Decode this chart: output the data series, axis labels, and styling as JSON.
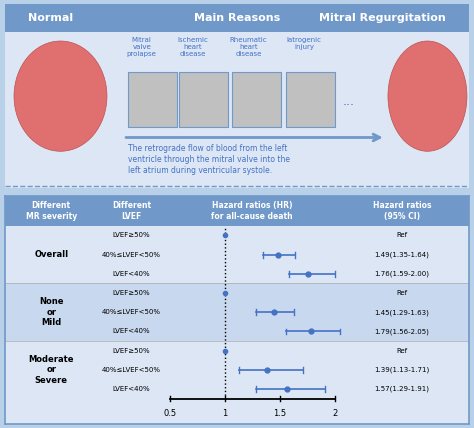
{
  "title_top": "Normal",
  "title_mid": "Main Reasons",
  "title_right": "Mitral Regurgitation",
  "reasons": [
    "Mitral\nvalve\nprolapse",
    "Ischemic\nheart\ndisease",
    "Rheumatic\nheart\ndisease",
    "Iatrogenic\ninjury"
  ],
  "description": "The retrograde flow of blood from the left\nventricle through the mitral valve into the\nleft atrium during ventricular systole.",
  "col_headers": [
    "Different\nMR severity",
    "Different\nLVEF",
    "Hazard ratios (HR)\nfor all-cause death",
    "Hazard ratios\n(95% CI)"
  ],
  "groups": [
    {
      "label": "Overall",
      "rows": [
        {
          "lvef": "LVEF≥50%",
          "hr": 1.0,
          "lo": 1.0,
          "hi": 1.0,
          "text": "Ref",
          "is_ref": true
        },
        {
          "lvef": "40%≤LVEF<50%",
          "hr": 1.49,
          "lo": 1.35,
          "hi": 1.64,
          "text": "1.49(1.35-1.64)",
          "is_ref": false
        },
        {
          "lvef": "LVEF<40%",
          "hr": 1.76,
          "lo": 1.59,
          "hi": 2.0,
          "text": "1.76(1.59-2.00)",
          "is_ref": false
        }
      ]
    },
    {
      "label": "None\nor\nMild",
      "rows": [
        {
          "lvef": "LVEF≥50%",
          "hr": 1.0,
          "lo": 1.0,
          "hi": 1.0,
          "text": "Ref",
          "is_ref": true
        },
        {
          "lvef": "40%≤LVEF<50%",
          "hr": 1.45,
          "lo": 1.29,
          "hi": 1.63,
          "text": "1.45(1.29-1.63)",
          "is_ref": false
        },
        {
          "lvef": "LVEF<40%",
          "hr": 1.79,
          "lo": 1.56,
          "hi": 2.05,
          "text": "1.79(1.56-2.05)",
          "is_ref": false
        }
      ]
    },
    {
      "label": "Moderate\nor\nSevere",
      "rows": [
        {
          "lvef": "LVEF≥50%",
          "hr": 1.0,
          "lo": 1.0,
          "hi": 1.0,
          "text": "Ref",
          "is_ref": true
        },
        {
          "lvef": "40%≤LVEF<50%",
          "hr": 1.39,
          "lo": 1.13,
          "hi": 1.71,
          "text": "1.39(1.13-1.71)",
          "is_ref": false
        },
        {
          "lvef": "LVEF<40%",
          "hr": 1.57,
          "lo": 1.29,
          "hi": 1.91,
          "text": "1.57(1.29-1.91)",
          "is_ref": false
        }
      ]
    }
  ],
  "xmin": 0.5,
  "xmax": 2.0,
  "xticks": [
    0.5,
    1.0,
    1.5,
    2.0
  ],
  "ref_line": 1.0,
  "header_bg": "#7098c8",
  "table_bg": "#dce6f5",
  "outer_bg": "#b8d0e8",
  "top_bg": "#dce6f5",
  "point_color": "#4472c4",
  "line_color": "#4472c4",
  "text_color_header": "#ffffff",
  "text_color_body": "#000000",
  "text_color_blue": "#4472c4"
}
